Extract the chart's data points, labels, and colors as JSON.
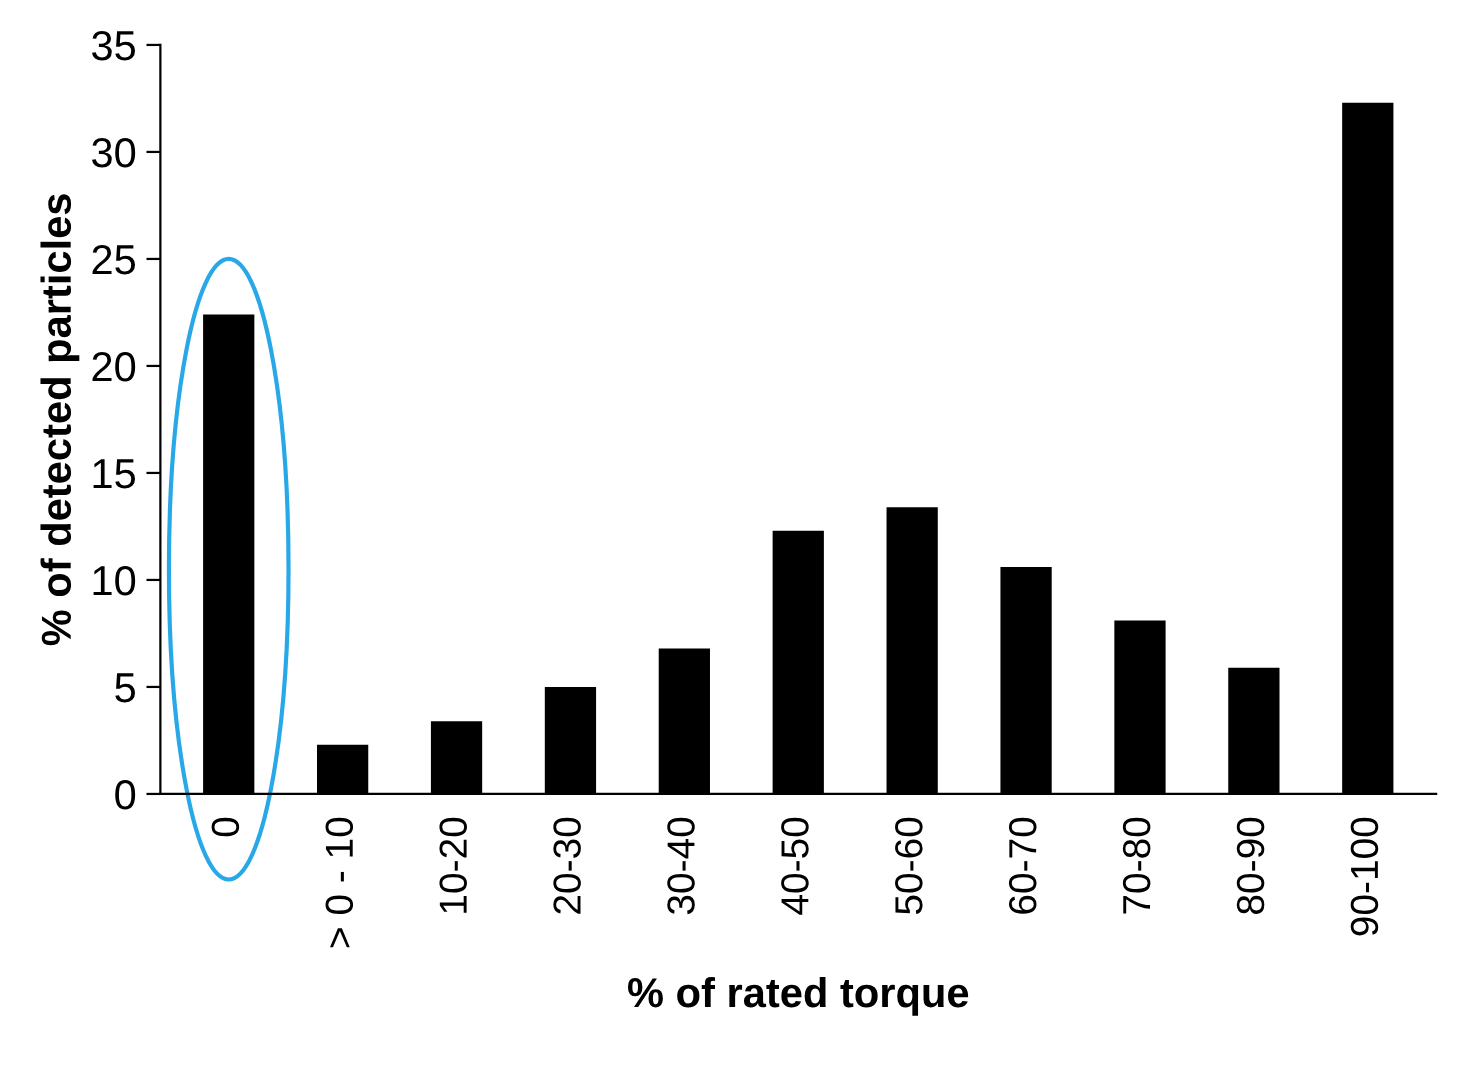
{
  "chart_data": {
    "type": "bar",
    "xlabel": "% of rated torque",
    "ylabel": "% of detected particles",
    "categories": [
      "0",
      "> 0 - 10",
      "10-20",
      "20-30",
      "30-40",
      "40-50",
      "50-60",
      "60-70",
      "70-80",
      "80-90",
      "90-100"
    ],
    "values": [
      22.4,
      2.3,
      3.4,
      5.0,
      6.8,
      12.3,
      13.4,
      10.6,
      8.1,
      5.9,
      32.3
    ],
    "color": "#000000",
    "ylim": [
      0,
      35
    ],
    "yticks": [
      0,
      5,
      10,
      15,
      20,
      25,
      30,
      35
    ],
    "grid": false,
    "legend": false
  }
}
